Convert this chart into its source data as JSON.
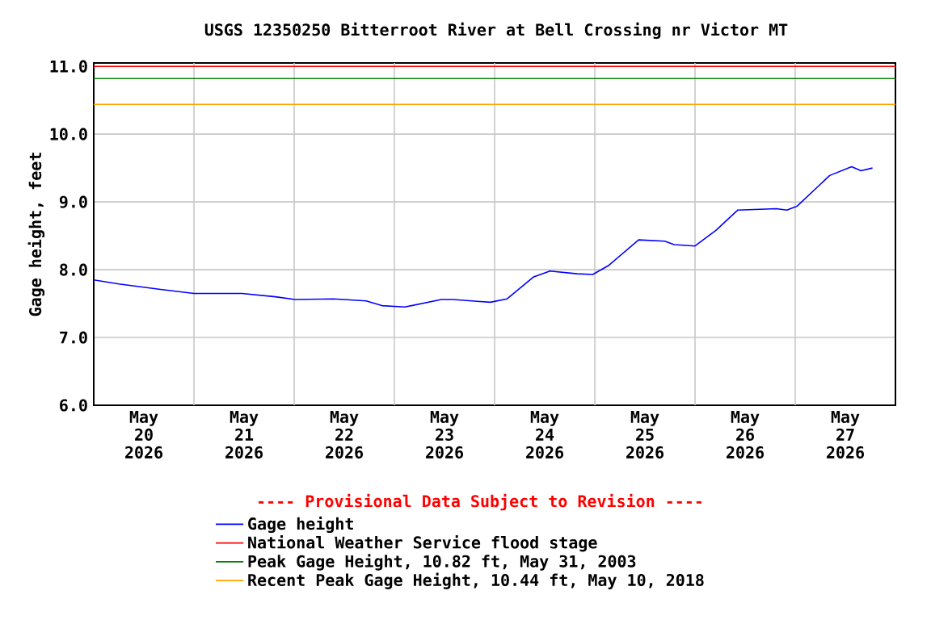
{
  "chart_data": {
    "type": "line",
    "title": "USGS 12350250 Bitterroot River at Bell Crossing nr Victor MT",
    "ylabel": "Gage height, feet",
    "xlim": [
      "2026-05-20T00:00",
      "2026-05-28T00:00"
    ],
    "ylim": [
      6,
      11.05
    ],
    "yticks": [
      {
        "value": 6,
        "label": "6.0"
      },
      {
        "value": 7,
        "label": "7.0"
      },
      {
        "value": 8,
        "label": "8.0"
      },
      {
        "value": 9,
        "label": "9.0"
      },
      {
        "value": 10,
        "label": "10.0"
      },
      {
        "value": 11,
        "label": "11.0"
      }
    ],
    "xticks": [
      {
        "value": "2026-05-20T12:00",
        "label": "May 20 2026"
      },
      {
        "value": "2026-05-21T00:00",
        "label": null
      },
      {
        "value": "2026-05-21T12:00",
        "label": "May 21 2026"
      },
      {
        "value": "2026-05-22T00:00",
        "label": null
      },
      {
        "value": "2026-05-22T12:00",
        "label": "May 22 2026"
      },
      {
        "value": "2026-05-23T00:00",
        "label": null
      },
      {
        "value": "2026-05-23T12:00",
        "label": "May 23 2026"
      },
      {
        "value": "2026-05-24T00:00",
        "label": null
      },
      {
        "value": "2026-05-24T12:00",
        "label": "May 24 2026"
      },
      {
        "value": "2026-05-25T00:00",
        "label": null
      },
      {
        "value": "2026-05-25T12:00",
        "label": "May 25 2026"
      },
      {
        "value": "2026-05-26T00:00",
        "label": null
      },
      {
        "value": "2026-05-26T12:00",
        "label": "May 26 2026"
      },
      {
        "value": "2026-05-27T00:00",
        "label": null
      },
      {
        "value": "2026-05-27T12:00",
        "label": "May 27 2026"
      }
    ],
    "x": [
      "2026-05-20T00:00",
      "2026-05-20T06:00",
      "2026-05-20T16:00",
      "2026-05-21T00:00",
      "2026-05-21T11:30",
      "2026-05-21T19:30",
      "2026-05-22T00:15",
      "2026-05-22T09:30",
      "2026-05-22T17:15",
      "2026-05-22T21:00",
      "2026-05-23T02:30",
      "2026-05-23T11:15",
      "2026-05-23T14:00",
      "2026-05-23T20:30",
      "2026-05-23T23:00",
      "2026-05-24T03:00",
      "2026-05-24T09:15",
      "2026-05-24T13:15",
      "2026-05-24T19:45",
      "2026-05-24T23:30",
      "2026-05-25T03:15",
      "2026-05-25T10:30",
      "2026-05-25T16:45",
      "2026-05-25T19:00",
      "2026-05-26T00:00",
      "2026-05-26T05:00",
      "2026-05-26T10:15",
      "2026-05-26T19:30",
      "2026-05-26T22:00",
      "2026-05-27T00:30",
      "2026-05-27T08:15",
      "2026-05-27T13:30",
      "2026-05-27T15:45",
      "2026-05-27T18:30"
    ],
    "series": [
      {
        "name": "Gage height",
        "color": "#0000ff",
        "values": [
          7.85,
          7.79,
          7.71,
          7.65,
          7.65,
          7.6,
          7.56,
          7.57,
          7.54,
          7.47,
          7.45,
          7.56,
          7.56,
          7.53,
          7.52,
          7.57,
          7.89,
          7.98,
          7.94,
          7.93,
          8.06,
          8.44,
          8.42,
          8.37,
          8.35,
          8.58,
          8.88,
          8.9,
          8.88,
          8.94,
          9.39,
          9.52,
          9.46,
          9.5
        ]
      }
    ],
    "ref_lines": [
      {
        "axis": "y",
        "value": 11,
        "label": "National Weather Service flood stage",
        "color": "#ff0000"
      },
      {
        "axis": "y",
        "value": 10.82,
        "label": "Peak Gage Height, 10.82 ft, May 31, 2003",
        "color": "#008000"
      },
      {
        "axis": "y",
        "value": 10.44,
        "label": "Recent Peak Gage Height, 10.44 ft, May 10, 2018",
        "color": "#ffa500"
      }
    ],
    "annotations": [
      "---- Provisional Data Subject to Revision ----"
    ],
    "grid": true,
    "legend": "bottom",
    "marker": "none",
    "line_style": "solid"
  }
}
